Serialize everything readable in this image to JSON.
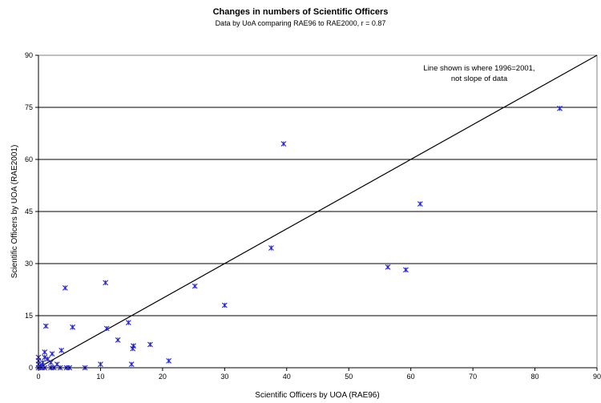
{
  "chart_data": {
    "type": "scatter",
    "title": "Changes in numbers of Scientific Officers",
    "subtitle": "Data by UoA comparing RAE96 to RAE2000, r = 0.87",
    "xlabel": "Scientific Officers by UOA (RAE96)",
    "ylabel": "Scientific Officers by UOA (RAE2001)",
    "xlim": [
      0,
      90
    ],
    "ylim": [
      0,
      90
    ],
    "xticks": [
      0,
      10,
      20,
      30,
      40,
      50,
      60,
      70,
      80,
      90
    ],
    "yticks": [
      0,
      15,
      30,
      45,
      60,
      75,
      90
    ],
    "grid": "horizontal",
    "annotation": [
      "Line shown is where 1996=2001,",
      "not slope of data"
    ],
    "reference_line": [
      [
        0,
        0
      ],
      [
        90,
        90
      ]
    ],
    "marker_color": "#1f1fd6",
    "points": [
      [
        0,
        0
      ],
      [
        0,
        1
      ],
      [
        0,
        2
      ],
      [
        0,
        3
      ],
      [
        0.3,
        0.5
      ],
      [
        0.5,
        0
      ],
      [
        0.7,
        1.5
      ],
      [
        1,
        0
      ],
      [
        1,
        3
      ],
      [
        1,
        4.5
      ],
      [
        1.2,
        12
      ],
      [
        1.5,
        2.5
      ],
      [
        2,
        0
      ],
      [
        2,
        1.5
      ],
      [
        2.2,
        4
      ],
      [
        2.5,
        0
      ],
      [
        3,
        1
      ],
      [
        3.5,
        0
      ],
      [
        3.7,
        5
      ],
      [
        4.3,
        23
      ],
      [
        4.5,
        0
      ],
      [
        5,
        0
      ],
      [
        5.5,
        11.7
      ],
      [
        7.5,
        0
      ],
      [
        10,
        1
      ],
      [
        10.8,
        24.5
      ],
      [
        11,
        11.3
      ],
      [
        12.8,
        8
      ],
      [
        14.5,
        13
      ],
      [
        15,
        1
      ],
      [
        15.2,
        5.5
      ],
      [
        15.3,
        6.3
      ],
      [
        18,
        6.7
      ],
      [
        21,
        2
      ],
      [
        25.2,
        23.5
      ],
      [
        30,
        18
      ],
      [
        37.5,
        34.5
      ],
      [
        39.5,
        64.5
      ],
      [
        56.3,
        29
      ],
      [
        59.2,
        28.2
      ],
      [
        61.5,
        47.2
      ],
      [
        84,
        74.7
      ]
    ]
  }
}
